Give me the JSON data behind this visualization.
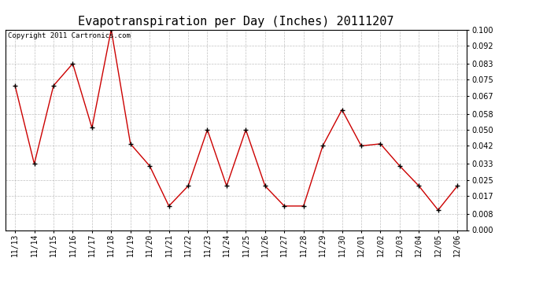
{
  "title": "Evapotranspiration per Day (Inches) 20111207",
  "copyright_text": "Copyright 2011 Cartronics.com",
  "labels": [
    "11/13",
    "11/14",
    "11/15",
    "11/16",
    "11/17",
    "11/18",
    "11/19",
    "11/20",
    "11/21",
    "11/22",
    "11/23",
    "11/24",
    "11/25",
    "11/26",
    "11/27",
    "11/28",
    "11/29",
    "11/30",
    "12/01",
    "12/02",
    "12/03",
    "12/04",
    "12/05",
    "12/06"
  ],
  "values": [
    0.072,
    0.033,
    0.072,
    0.083,
    0.051,
    0.1,
    0.043,
    0.032,
    0.012,
    0.022,
    0.05,
    0.022,
    0.05,
    0.022,
    0.012,
    0.012,
    0.042,
    0.06,
    0.042,
    0.043,
    0.032,
    0.022,
    0.01,
    0.022
  ],
  "line_color": "#cc0000",
  "marker_face": "#000000",
  "bg_color": "#ffffff",
  "grid_color": "#b0b0b0",
  "ylim": [
    0.0,
    0.1
  ],
  "yticks": [
    0.0,
    0.008,
    0.017,
    0.025,
    0.033,
    0.042,
    0.05,
    0.058,
    0.067,
    0.075,
    0.083,
    0.092,
    0.1
  ],
  "title_fontsize": 11,
  "tick_fontsize": 7,
  "copyright_fontsize": 6.5
}
